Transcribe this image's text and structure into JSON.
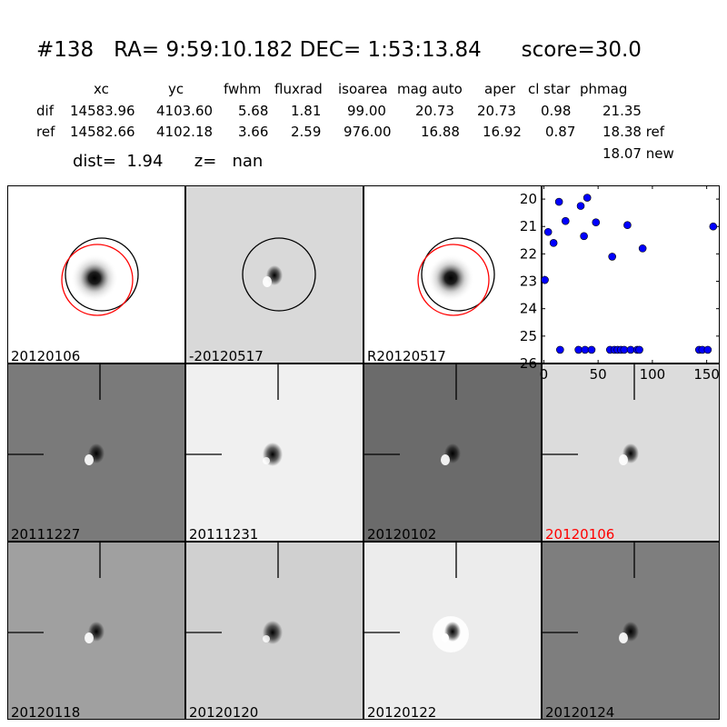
{
  "title": "#138   RA= 9:59:10.182 DEC= 1:53:13.84      score=30.0",
  "table": {
    "headers": [
      "xc",
      "yc",
      "fwhm",
      "fluxrad",
      "isoarea",
      "mag auto",
      "aper",
      "cl star",
      "phmag"
    ],
    "rows": [
      {
        "label": "dif",
        "values": [
          "14583.96",
          "4103.60",
          "5.68",
          "1.81",
          "99.00",
          "20.73",
          "20.73",
          "0.98",
          "21.35"
        ]
      },
      {
        "label": "ref",
        "values": [
          "14582.66",
          "4102.18",
          "3.66",
          "2.59",
          "976.00",
          "16.88",
          "16.92",
          "0.87",
          "18.38 ref"
        ]
      }
    ],
    "extra_phmag": "18.07 new"
  },
  "dist_line": "dist=  1.94      z=   nan",
  "panels": [
    {
      "label": "20120106",
      "bg": "#ffffff",
      "style": "star",
      "circles": [
        "black",
        "red"
      ],
      "crosshair": false
    },
    {
      "label": "-20120517",
      "bg": "#d9d9d9",
      "style": "dipole",
      "circles": [
        "black"
      ],
      "crosshair": false
    },
    {
      "label": "R20120517",
      "bg": "#ffffff",
      "style": "star",
      "circles": [
        "black",
        "red"
      ],
      "crosshair": false
    },
    {
      "label": "20111227",
      "bg": "#7a7a7a",
      "style": "dipole",
      "circles": [],
      "crosshair": true
    },
    {
      "label": "20111231",
      "bg": "#f0f0f0",
      "style": "blob",
      "circles": [],
      "crosshair": true
    },
    {
      "label": "20120102",
      "bg": "#6b6b6b",
      "style": "dipole",
      "circles": [],
      "crosshair": true
    },
    {
      "label": "20120106",
      "bg": "#dcdcdc",
      "style": "dipole",
      "circles": [],
      "crosshair": true,
      "label_color": "#ff0000"
    },
    {
      "label": "20120118",
      "bg": "#a0a0a0",
      "style": "dipole",
      "circles": [],
      "crosshair": true
    },
    {
      "label": "20120120",
      "bg": "#d0d0d0",
      "style": "blob",
      "circles": [],
      "crosshair": true
    },
    {
      "label": "20120122",
      "bg": "#ececec",
      "style": "ring",
      "circles": [],
      "crosshair": true
    },
    {
      "label": "20120124",
      "bg": "#7e7e7e",
      "style": "dipole",
      "circles": [],
      "crosshair": true
    }
  ],
  "chart_data": {
    "type": "scatter",
    "title": "",
    "xlabel": "",
    "ylabel": "",
    "xlim": [
      -2,
      162
    ],
    "ylim": [
      26,
      19.5
    ],
    "y_inverted": true,
    "xticks": [
      0,
      50,
      100,
      150
    ],
    "yticks": [
      20,
      21,
      22,
      23,
      24,
      25,
      26
    ],
    "grid": false,
    "marker_color": "#0000ff",
    "points": [
      {
        "x": 1,
        "y": 22.95,
        "err": 0.15
      },
      {
        "x": 4,
        "y": 21.2
      },
      {
        "x": 9,
        "y": 21.6
      },
      {
        "x": 14,
        "y": 20.1
      },
      {
        "x": 15,
        "y": 25.5
      },
      {
        "x": 20,
        "y": 20.8
      },
      {
        "x": 32,
        "y": 25.5
      },
      {
        "x": 34,
        "y": 20.25
      },
      {
        "x": 37,
        "y": 21.35
      },
      {
        "x": 38,
        "y": 25.5
      },
      {
        "x": 40,
        "y": 19.95
      },
      {
        "x": 44,
        "y": 25.5
      },
      {
        "x": 48,
        "y": 20.85
      },
      {
        "x": 61,
        "y": 25.5
      },
      {
        "x": 63,
        "y": 22.1
      },
      {
        "x": 65,
        "y": 25.5
      },
      {
        "x": 68,
        "y": 25.5
      },
      {
        "x": 71,
        "y": 25.5
      },
      {
        "x": 74,
        "y": 25.5
      },
      {
        "x": 77,
        "y": 20.95
      },
      {
        "x": 80,
        "y": 25.5
      },
      {
        "x": 86,
        "y": 25.5
      },
      {
        "x": 88,
        "y": 25.5
      },
      {
        "x": 91,
        "y": 21.8
      },
      {
        "x": 143,
        "y": 25.5
      },
      {
        "x": 146,
        "y": 25.5
      },
      {
        "x": 151,
        "y": 25.5
      },
      {
        "x": 156,
        "y": 21.0
      }
    ]
  }
}
